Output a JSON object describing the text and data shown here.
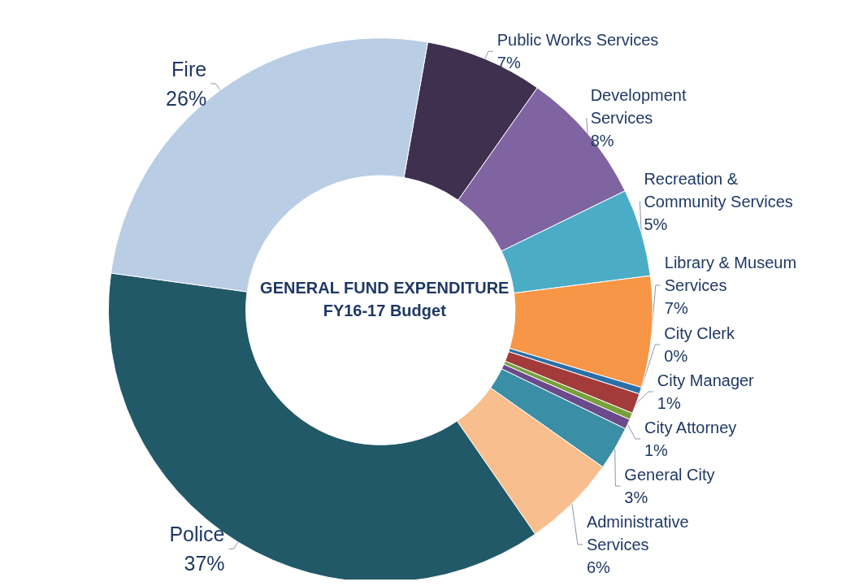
{
  "chart_data": {
    "type": "donut",
    "title": "GENERAL FUND EXPENDITURE",
    "subtitle": "FY16-17 Budget",
    "categories": [
      "Public Works Services",
      "Development Services",
      "Recreation & Community Services",
      "Library & Museum Services",
      "City Clerk",
      "City Manager",
      null,
      "City Attorney",
      "General City",
      "Administrative Services",
      "Police",
      "Fire"
    ],
    "values": [
      7.0,
      8.0,
      5.2,
      6.6,
      0.4,
      1.2,
      0.4,
      0.6,
      2.6,
      5.6,
      36.8,
      25.6
    ],
    "value_labels": [
      "7%",
      "8%",
      "5%",
      "7%",
      "0%",
      "1%",
      null,
      "1%",
      "3%",
      "6%",
      "37%",
      "26%"
    ],
    "colors": [
      "#3f3050",
      "#8064a2",
      "#4bacc6",
      "#f79646",
      "#2c6fa6",
      "#a33b3b",
      "#77a03b",
      "#6a4a8a",
      "#3a8ea5",
      "#f9be8e",
      "#215968",
      "#b9cde5"
    ],
    "legend": false
  }
}
